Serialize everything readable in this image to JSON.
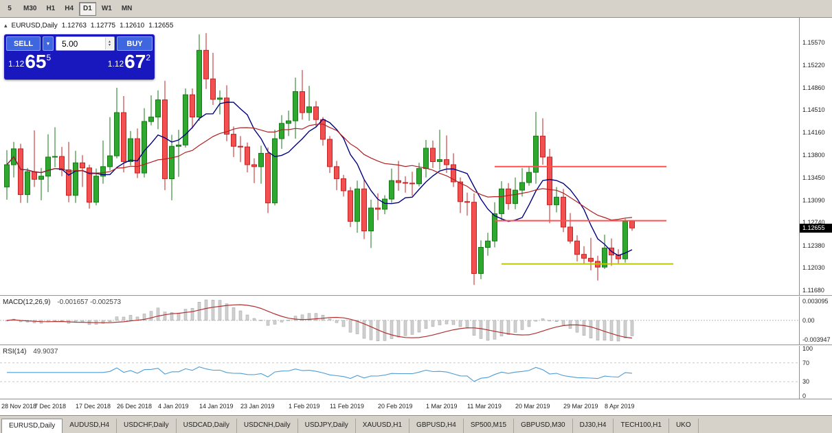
{
  "toolbar": {
    "timeframes": [
      {
        "label": "5",
        "active": false
      },
      {
        "label": "M30",
        "active": false
      },
      {
        "label": "H1",
        "active": false
      },
      {
        "label": "H4",
        "active": false
      },
      {
        "label": "D1",
        "active": true
      },
      {
        "label": "W1",
        "active": false
      },
      {
        "label": "MN",
        "active": false
      }
    ]
  },
  "chart_window": {
    "title": {
      "symbol": "EURUSD,Daily",
      "open": "1.12763",
      "high": "1.12775",
      "low": "1.12610",
      "close": "1.12655"
    },
    "trade_panel": {
      "sell_label": "SELL",
      "buy_label": "BUY",
      "volume": "5.00",
      "sell_price": {
        "prefix": "1.12",
        "big": "65",
        "sup": "5"
      },
      "buy_price": {
        "prefix": "1.12",
        "big": "67",
        "sup": "2"
      }
    },
    "current_price_tag": "1.12655"
  },
  "chart_data": {
    "type": "candlestick",
    "symbol": "EURUSD",
    "period": "Daily",
    "price_range": {
      "top": 1.1596,
      "bottom": 1.116
    },
    "y_ticks": [
      "1.15570",
      "1.15220",
      "1.14860",
      "1.14510",
      "1.14160",
      "1.13800",
      "1.13450",
      "1.13090",
      "1.12740",
      "1.12380",
      "1.12030",
      "1.11680"
    ],
    "x_ticks": [
      {
        "label": "28 Nov 2018",
        "index": 0
      },
      {
        "label": "7 Dec 2018",
        "index": 7
      },
      {
        "label": "17 Dec 2018",
        "index": 13
      },
      {
        "label": "26 Dec 2018",
        "index": 19
      },
      {
        "label": "4 Jan 2019",
        "index": 25
      },
      {
        "label": "14 Jan 2019",
        "index": 31
      },
      {
        "label": "23 Jan 2019",
        "index": 37
      },
      {
        "label": "1 Feb 2019",
        "index": 44
      },
      {
        "label": "11 Feb 2019",
        "index": 50
      },
      {
        "label": "20 Feb 2019",
        "index": 57
      },
      {
        "label": "1 Mar 2019",
        "index": 64
      },
      {
        "label": "11 Mar 2019",
        "index": 70
      },
      {
        "label": "20 Mar 2019",
        "index": 77
      },
      {
        "label": "29 Mar 2019",
        "index": 84
      },
      {
        "label": "8 Apr 2019",
        "index": 90
      }
    ],
    "candles": [
      [
        1.133,
        1.1388,
        1.131,
        1.1365
      ],
      [
        1.1365,
        1.1401,
        1.1345,
        1.139
      ],
      [
        1.139,
        1.1398,
        1.1305,
        1.1318
      ],
      [
        1.1318,
        1.136,
        1.1305,
        1.1354
      ],
      [
        1.1354,
        1.1419,
        1.133,
        1.1342
      ],
      [
        1.1342,
        1.136,
        1.1309,
        1.1347
      ],
      [
        1.1347,
        1.1413,
        1.1322,
        1.1377
      ],
      [
        1.1377,
        1.1424,
        1.1361,
        1.1378
      ],
      [
        1.1378,
        1.1393,
        1.1347,
        1.1357
      ],
      [
        1.1357,
        1.1401,
        1.1306,
        1.1317
      ],
      [
        1.1317,
        1.1387,
        1.1305,
        1.1368
      ],
      [
        1.1368,
        1.138,
        1.133,
        1.136
      ],
      [
        1.136,
        1.1365,
        1.1296,
        1.1306
      ],
      [
        1.1306,
        1.1359,
        1.1301,
        1.1347
      ],
      [
        1.1347,
        1.1403,
        1.1335,
        1.1362
      ],
      [
        1.1362,
        1.144,
        1.1356,
        1.1379
      ],
      [
        1.1379,
        1.1486,
        1.1375,
        1.1447
      ],
      [
        1.1447,
        1.1473,
        1.1353,
        1.137
      ],
      [
        1.137,
        1.1418,
        1.1364,
        1.1406
      ],
      [
        1.1406,
        1.1422,
        1.1344,
        1.1352
      ],
      [
        1.1352,
        1.1454,
        1.1345,
        1.1433
      ],
      [
        1.1433,
        1.1474,
        1.1427,
        1.144
      ],
      [
        1.144,
        1.1482,
        1.1421,
        1.1467
      ],
      [
        1.1467,
        1.1497,
        1.1325,
        1.1343
      ],
      [
        1.1343,
        1.1412,
        1.1309,
        1.1394
      ],
      [
        1.1394,
        1.142,
        1.1346,
        1.1396
      ],
      [
        1.1396,
        1.1485,
        1.1392,
        1.1475
      ],
      [
        1.1475,
        1.1485,
        1.1422,
        1.144
      ],
      [
        1.144,
        1.157,
        1.1434,
        1.1545
      ],
      [
        1.1545,
        1.1572,
        1.1484,
        1.15
      ],
      [
        1.15,
        1.1541,
        1.1459,
        1.1468
      ],
      [
        1.1468,
        1.1482,
        1.1444,
        1.147
      ],
      [
        1.147,
        1.149,
        1.1402,
        1.1413
      ],
      [
        1.1413,
        1.1425,
        1.1377,
        1.1394
      ],
      [
        1.1394,
        1.141,
        1.1369,
        1.1393
      ],
      [
        1.1393,
        1.14,
        1.1353,
        1.1365
      ],
      [
        1.1365,
        1.1375,
        1.1336,
        1.1362
      ],
      [
        1.1362,
        1.1395,
        1.1335,
        1.1383
      ],
      [
        1.1383,
        1.1392,
        1.1289,
        1.1305
      ],
      [
        1.1305,
        1.142,
        1.1301,
        1.1406
      ],
      [
        1.1406,
        1.1443,
        1.139,
        1.143
      ],
      [
        1.143,
        1.145,
        1.141,
        1.1434
      ],
      [
        1.1434,
        1.1502,
        1.1406,
        1.148
      ],
      [
        1.148,
        1.1514,
        1.1436,
        1.1447
      ],
      [
        1.1447,
        1.1489,
        1.1434,
        1.1456
      ],
      [
        1.1456,
        1.1465,
        1.1425,
        1.1436
      ],
      [
        1.1436,
        1.144,
        1.1395,
        1.1405
      ],
      [
        1.1405,
        1.141,
        1.1352,
        1.1362
      ],
      [
        1.1362,
        1.1371,
        1.1325,
        1.1343
      ],
      [
        1.1343,
        1.1349,
        1.1315,
        1.1324
      ],
      [
        1.1324,
        1.133,
        1.1267,
        1.1276
      ],
      [
        1.1276,
        1.134,
        1.1258,
        1.1327
      ],
      [
        1.1327,
        1.1341,
        1.1248,
        1.1261
      ],
      [
        1.1261,
        1.131,
        1.1234,
        1.1297
      ],
      [
        1.1297,
        1.132,
        1.1278,
        1.1295
      ],
      [
        1.1295,
        1.1317,
        1.1287,
        1.1311
      ],
      [
        1.1311,
        1.1359,
        1.1305,
        1.134
      ],
      [
        1.134,
        1.1371,
        1.1324,
        1.1337
      ],
      [
        1.1337,
        1.1347,
        1.1321,
        1.1336
      ],
      [
        1.1336,
        1.1354,
        1.1316,
        1.1335
      ],
      [
        1.1335,
        1.1368,
        1.1331,
        1.1359
      ],
      [
        1.1359,
        1.1404,
        1.1345,
        1.1391
      ],
      [
        1.1391,
        1.1403,
        1.136,
        1.137
      ],
      [
        1.137,
        1.142,
        1.1357,
        1.1373
      ],
      [
        1.1373,
        1.1411,
        1.1352,
        1.1365
      ],
      [
        1.1365,
        1.1383,
        1.133,
        1.1338
      ],
      [
        1.1338,
        1.1345,
        1.1289,
        1.1307
      ],
      [
        1.1307,
        1.1321,
        1.1285,
        1.1306
      ],
      [
        1.1306,
        1.132,
        1.1176,
        1.1194
      ],
      [
        1.1194,
        1.1246,
        1.1185,
        1.1235
      ],
      [
        1.1235,
        1.1258,
        1.1222,
        1.1245
      ],
      [
        1.1245,
        1.1306,
        1.1235,
        1.1288
      ],
      [
        1.1288,
        1.1339,
        1.1278,
        1.1327
      ],
      [
        1.1327,
        1.1336,
        1.1294,
        1.1304
      ],
      [
        1.1304,
        1.1345,
        1.1295,
        1.1325
      ],
      [
        1.1325,
        1.136,
        1.1315,
        1.1337
      ],
      [
        1.1337,
        1.1362,
        1.1332,
        1.1353
      ],
      [
        1.1353,
        1.1448,
        1.1335,
        1.141
      ],
      [
        1.141,
        1.1438,
        1.1365,
        1.1377
      ],
      [
        1.1377,
        1.139,
        1.1273,
        1.1302
      ],
      [
        1.1302,
        1.133,
        1.129,
        1.1314
      ],
      [
        1.1314,
        1.1327,
        1.1259,
        1.1267
      ],
      [
        1.1267,
        1.1289,
        1.1241,
        1.1245
      ],
      [
        1.1245,
        1.1254,
        1.1213,
        1.1224
      ],
      [
        1.1224,
        1.1237,
        1.121,
        1.1218
      ],
      [
        1.1218,
        1.125,
        1.1199,
        1.1213
      ],
      [
        1.1213,
        1.1222,
        1.1183,
        1.1204
      ],
      [
        1.1204,
        1.1255,
        1.1201,
        1.1234
      ],
      [
        1.1234,
        1.1249,
        1.1206,
        1.1223
      ],
      [
        1.1223,
        1.1232,
        1.121,
        1.1217
      ],
      [
        1.1217,
        1.128,
        1.1211,
        1.1276
      ],
      [
        1.12763,
        1.12775,
        1.1261,
        1.12655
      ]
    ],
    "moving_averages": [
      {
        "name": "ma-fast",
        "period": 8,
        "color": "#000080",
        "width": 1.4
      },
      {
        "name": "ma-slow",
        "period": 21,
        "color": "#B02020",
        "width": 1.2
      }
    ],
    "lines": [
      {
        "name": "resistance-line-1",
        "price": 1.1362,
        "from": 71,
        "to": 96,
        "color": "#FF5050",
        "width": 2
      },
      {
        "name": "resistance-line-2",
        "price": 1.1277,
        "from": 71,
        "to": 96,
        "color": "#FF5050",
        "width": 2
      },
      {
        "name": "support-line",
        "price": 1.1209,
        "from": 72,
        "to": 97,
        "color": "#BCC800",
        "width": 2
      }
    ],
    "macd": {
      "name": "MACD(12,26,9)",
      "values": "-0.001657 -0.002573",
      "fast": 12,
      "slow": 26,
      "signal": 9,
      "scale": {
        "top": "0.003095",
        "zero": "0.00",
        "bottom": "-0.003947"
      },
      "hist_color": "#D0D0D0",
      "hist_stroke": "#9E9E9E",
      "signal_color": "#B03030"
    },
    "rsi": {
      "name": "RSI(14)",
      "value": "49.9037",
      "period": 14,
      "color": "#4C9CD6",
      "scale": [
        "100",
        "70",
        "30",
        "0"
      ],
      "levels": [
        70,
        30
      ]
    }
  },
  "tabs": [
    {
      "label": "EURUSD,Daily",
      "active": true
    },
    {
      "label": "AUDUSD,H4",
      "active": false
    },
    {
      "label": "USDCHF,Daily",
      "active": false
    },
    {
      "label": "USDCAD,Daily",
      "active": false
    },
    {
      "label": "USDCNH,Daily",
      "active": false
    },
    {
      "label": "USDJPY,Daily",
      "active": false
    },
    {
      "label": "XAUUSD,H1",
      "active": false
    },
    {
      "label": "GBPUSD,H4",
      "active": false
    },
    {
      "label": "SP500,M15",
      "active": false
    },
    {
      "label": "GBPUSD,M30",
      "active": false
    },
    {
      "label": "DJ30,H4",
      "active": false
    },
    {
      "label": "TECH100,H1",
      "active": false
    },
    {
      "label": "UKO",
      "active": false
    }
  ],
  "colors": {
    "up_fill": "#2FA82F",
    "up_stroke": "#157815",
    "down_fill": "#F25050",
    "down_stroke": "#C32222",
    "background": "#FFFFFF",
    "chrome": "#D6D2CA",
    "pane_border": "#8E8E8E",
    "tag_bg": "#000000",
    "panel_bg": "#1818BE",
    "panel_btn": "#3E66DE"
  }
}
